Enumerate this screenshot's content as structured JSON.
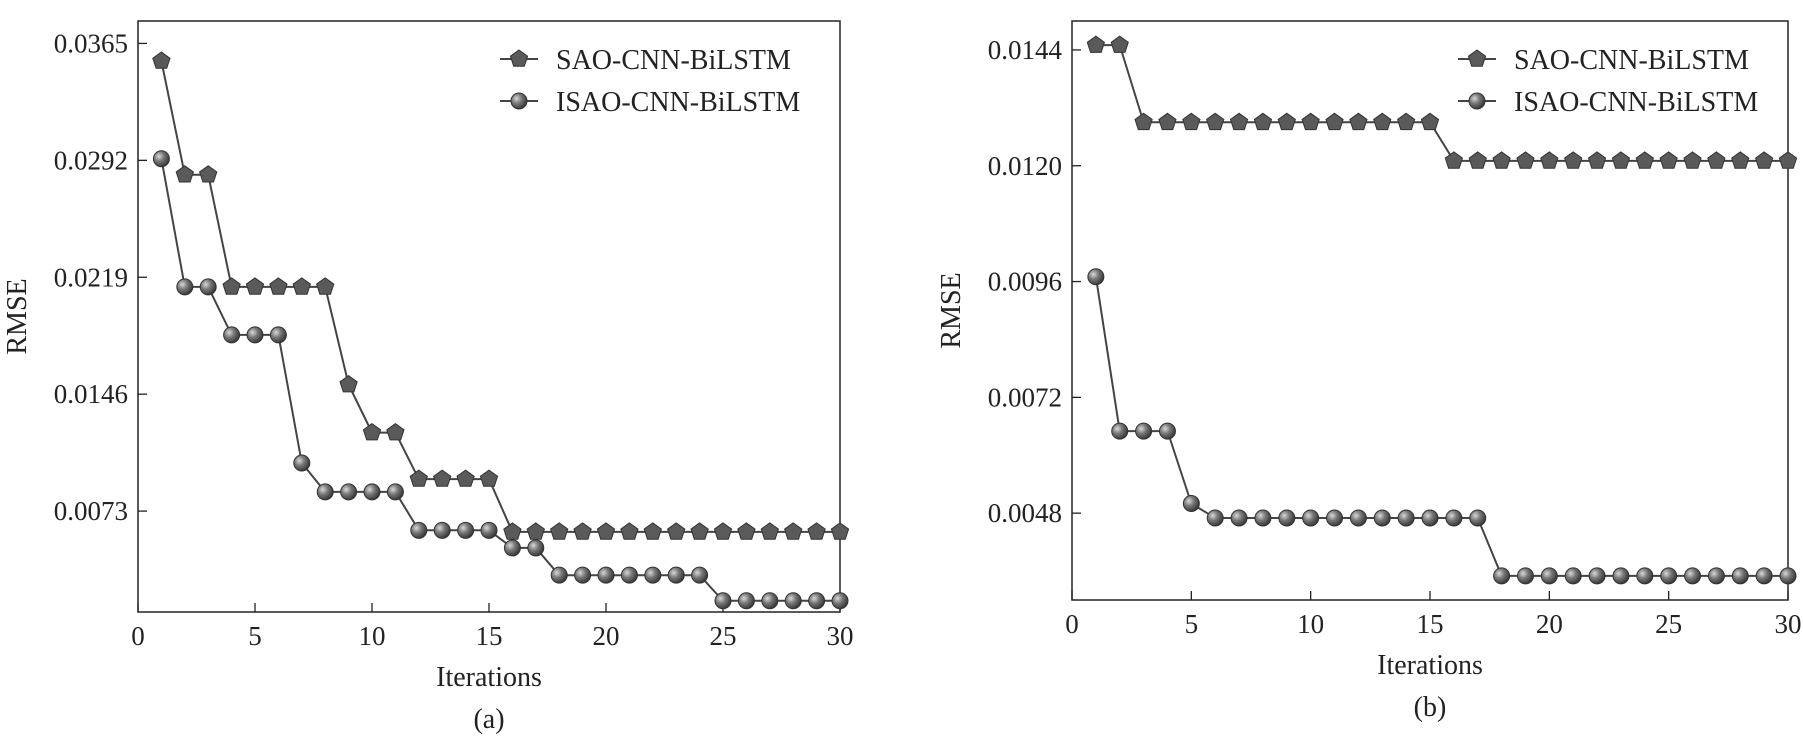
{
  "chart_data": [
    {
      "type": "line",
      "panel_label": "(a)",
      "xlabel": "Iterations",
      "ylabel": "RMSE",
      "xlim": [
        0,
        30
      ],
      "ylim": [
        0.001,
        0.0379
      ],
      "xticks": [
        0,
        5,
        10,
        15,
        20,
        25,
        30
      ],
      "yticks": [
        "0.0073",
        "0.0146",
        "0.0219",
        "0.0292",
        "0.0365"
      ],
      "legend_position": "top-right",
      "grid": false,
      "x": [
        1,
        2,
        3,
        4,
        5,
        6,
        7,
        8,
        9,
        10,
        11,
        12,
        13,
        14,
        15,
        16,
        17,
        18,
        19,
        20,
        21,
        22,
        23,
        24,
        25,
        26,
        27,
        28,
        29,
        30
      ],
      "series": [
        {
          "name": "SAO-CNN-BiLSTM",
          "marker": "pentagon",
          "values": [
            0.0354,
            0.0283,
            0.0283,
            0.0213,
            0.0213,
            0.0213,
            0.0213,
            0.0213,
            0.0152,
            0.0122,
            0.0122,
            0.0093,
            0.0093,
            0.0093,
            0.0093,
            0.006,
            0.006,
            0.006,
            0.006,
            0.006,
            0.006,
            0.006,
            0.006,
            0.006,
            0.006,
            0.006,
            0.006,
            0.006,
            0.006,
            0.006
          ]
        },
        {
          "name": "ISAO-CNN-BiLSTM",
          "marker": "sphere",
          "values": [
            0.0293,
            0.0213,
            0.0213,
            0.0183,
            0.0183,
            0.0183,
            0.0103,
            0.0085,
            0.0085,
            0.0085,
            0.0085,
            0.0061,
            0.0061,
            0.0061,
            0.0061,
            0.005,
            0.005,
            0.0033,
            0.0033,
            0.0033,
            0.0033,
            0.0033,
            0.0033,
            0.0033,
            0.0017,
            0.0017,
            0.0017,
            0.0017,
            0.0017,
            0.0017
          ]
        }
      ]
    },
    {
      "type": "line",
      "panel_label": "(b)",
      "xlabel": "Iterations",
      "ylabel": "RMSE",
      "xlim": [
        0,
        30
      ],
      "ylim": [
        0.003,
        0.015
      ],
      "xticks": [
        0,
        5,
        10,
        15,
        20,
        25,
        30
      ],
      "yticks": [
        "0.0048",
        "0.0072",
        "0.0096",
        "0.0120",
        "0.0144"
      ],
      "legend_position": "top-right",
      "grid": false,
      "x": [
        1,
        2,
        3,
        4,
        5,
        6,
        7,
        8,
        9,
        10,
        11,
        12,
        13,
        14,
        15,
        16,
        17,
        18,
        19,
        20,
        21,
        22,
        23,
        24,
        25,
        26,
        27,
        28,
        29,
        30
      ],
      "series": [
        {
          "name": "SAO-CNN-BiLSTM",
          "marker": "pentagon",
          "values": [
            0.0145,
            0.0145,
            0.0129,
            0.0129,
            0.0129,
            0.0129,
            0.0129,
            0.0129,
            0.0129,
            0.0129,
            0.0129,
            0.0129,
            0.0129,
            0.0129,
            0.0129,
            0.0121,
            0.0121,
            0.0121,
            0.0121,
            0.0121,
            0.0121,
            0.0121,
            0.0121,
            0.0121,
            0.0121,
            0.0121,
            0.0121,
            0.0121,
            0.0121,
            0.0121
          ]
        },
        {
          "name": "ISAO-CNN-BiLSTM",
          "marker": "sphere",
          "values": [
            0.0097,
            0.0065,
            0.0065,
            0.0065,
            0.005,
            0.0047,
            0.0047,
            0.0047,
            0.0047,
            0.0047,
            0.0047,
            0.0047,
            0.0047,
            0.0047,
            0.0047,
            0.0047,
            0.0047,
            0.0035,
            0.0035,
            0.0035,
            0.0035,
            0.0035,
            0.0035,
            0.0035,
            0.0035,
            0.0035,
            0.0035,
            0.0035,
            0.0035,
            0.0035
          ]
        }
      ]
    }
  ],
  "colors": {
    "line": "#444444",
    "marker": "#5a5a5a",
    "axis": "#222222"
  }
}
